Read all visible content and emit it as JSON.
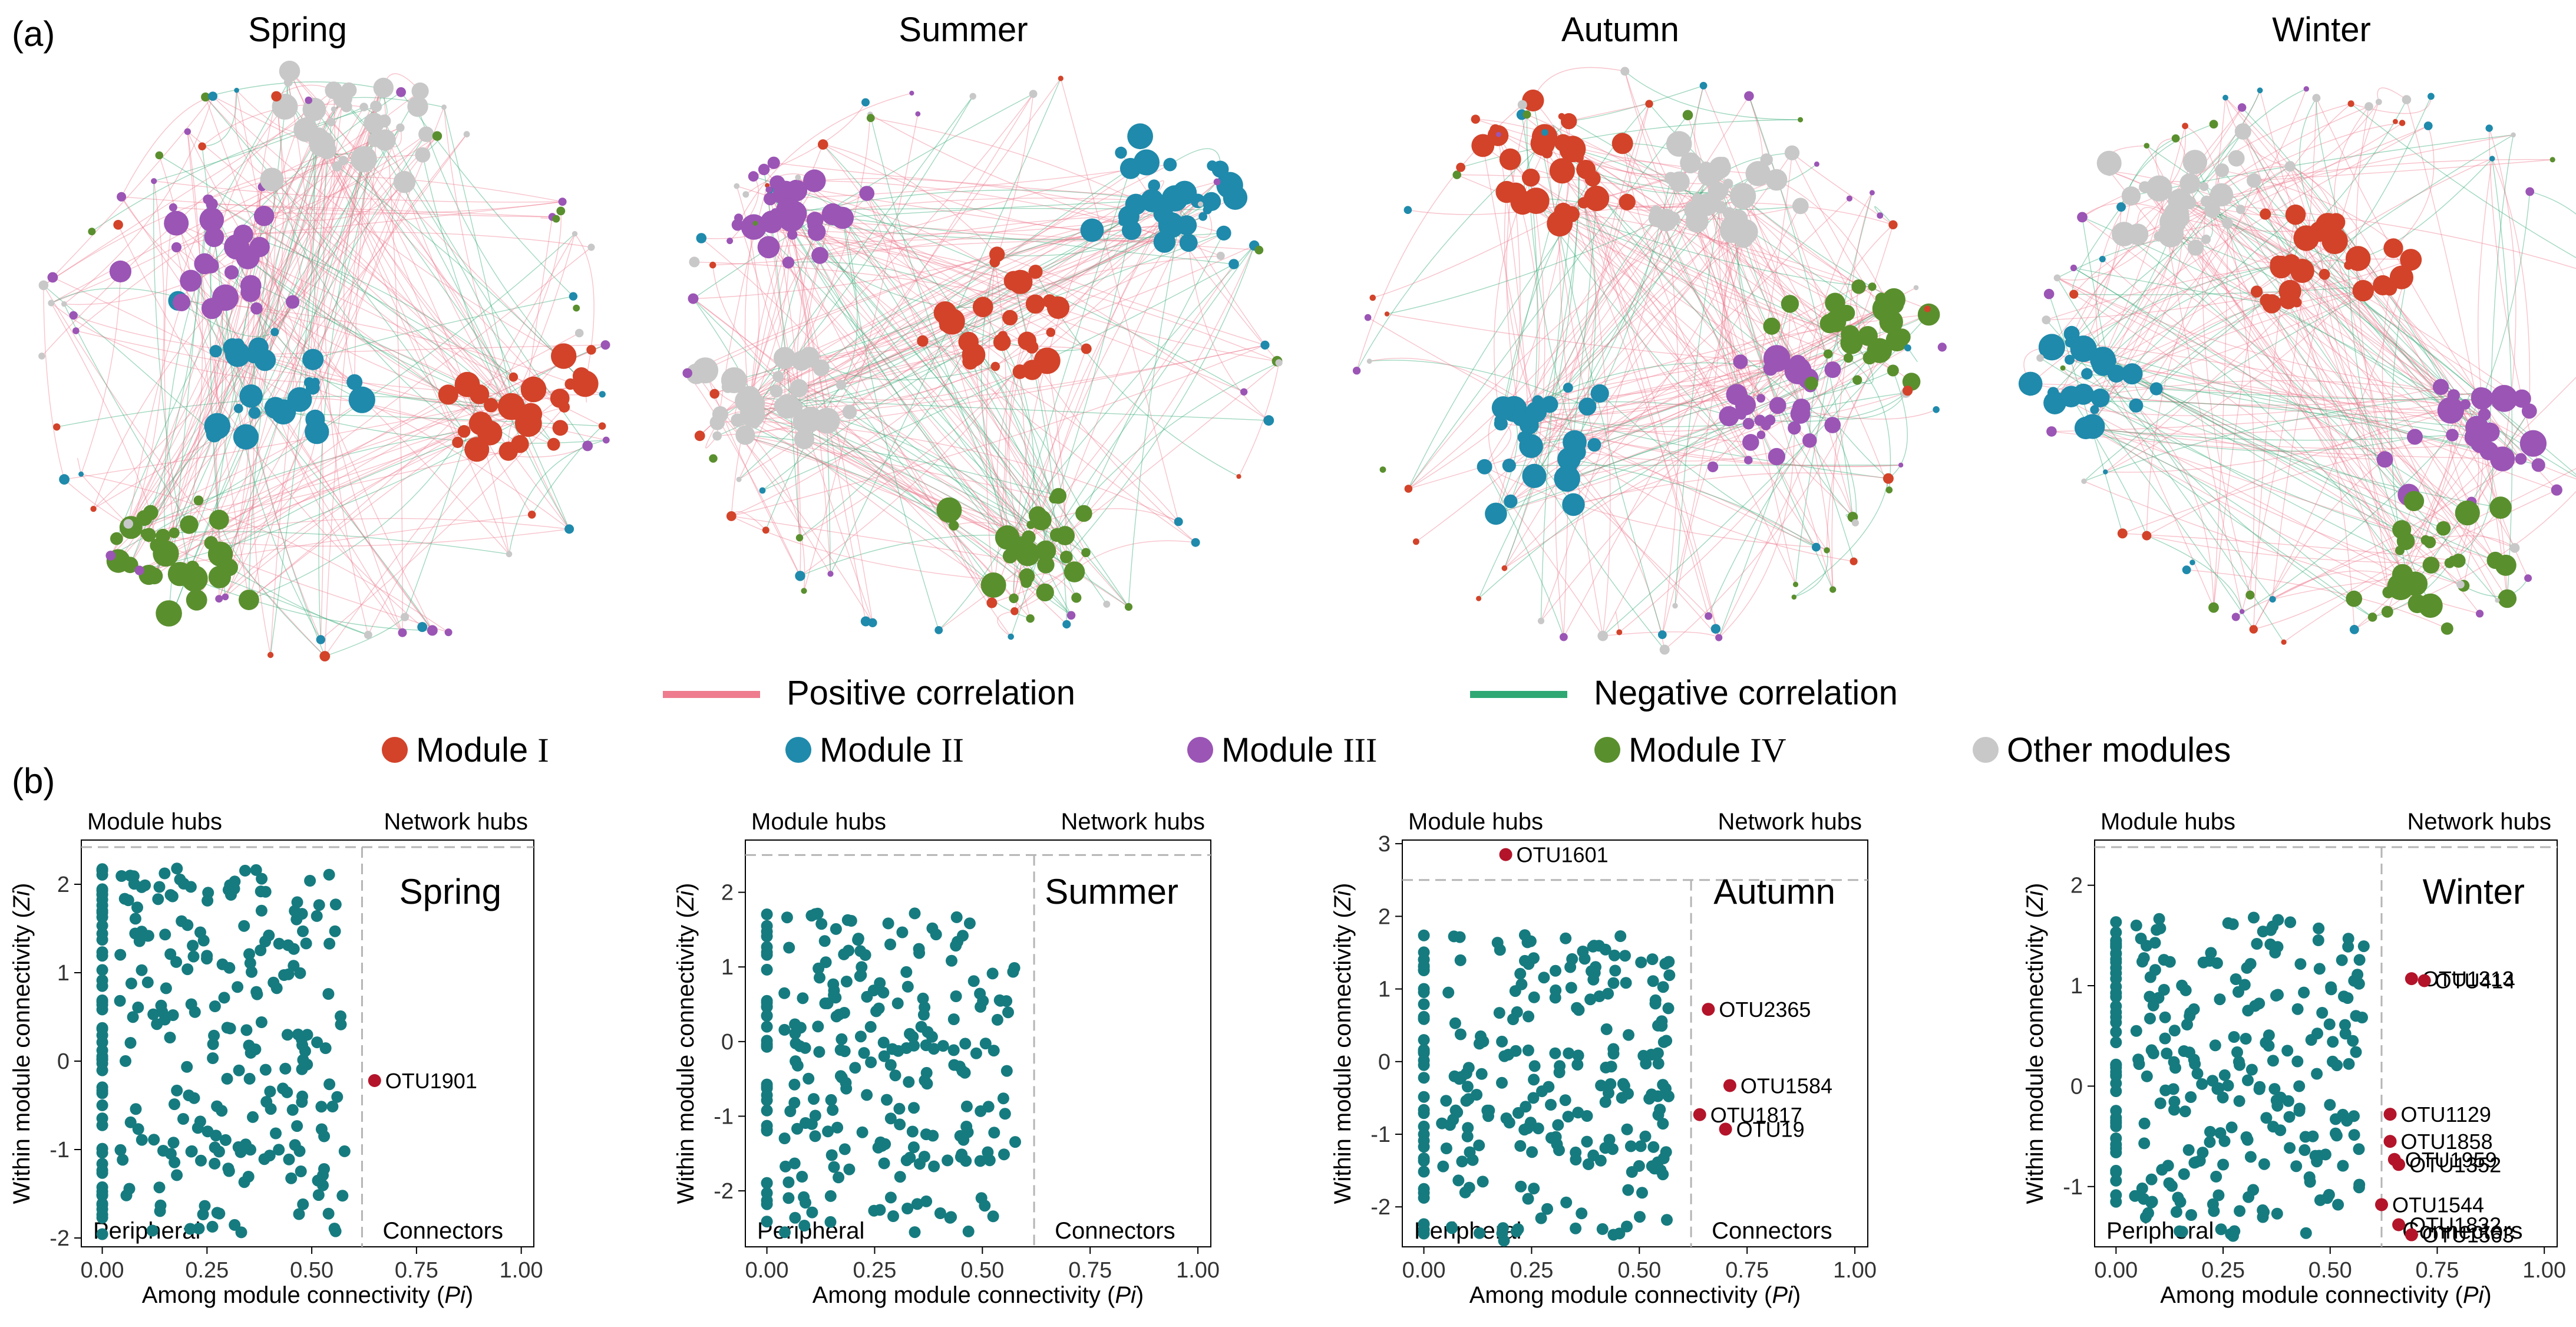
{
  "panel_a_label": "(a)",
  "panel_b_label": "(b)",
  "network_titles": [
    "Spring",
    "Summer",
    "Autumn",
    "Winter"
  ],
  "legend": {
    "positive": "Positive correlation",
    "negative": "Negative correlation",
    "modules": [
      {
        "word": "Module",
        "numeral": "I",
        "color": "#D2432A"
      },
      {
        "word": "Module",
        "numeral": "II",
        "color": "#1F8AAB"
      },
      {
        "word": "Module",
        "numeral": "III",
        "color": "#9B55B5"
      },
      {
        "word": "Module",
        "numeral": "IV",
        "color": "#5A8F2E"
      },
      {
        "word": "Other modules",
        "numeral": "",
        "color": "#C8C8C8"
      }
    ],
    "positive_color": "#EE7B8E",
    "negative_color": "#2FA874"
  },
  "colors": {
    "point": "#167B7F",
    "hub": "#B3142A",
    "dashed": "#B5B5B5"
  },
  "chart_data": [
    {
      "type": "scatter",
      "season": "Spring",
      "xlabel": "Among module connectivity (Pi)",
      "ylabel": "Within module connectivity (Zi)",
      "xlim": [
        -0.05,
        1.03
      ],
      "ylim": [
        -2.1,
        2.5
      ],
      "xticks": [
        "0.00",
        "0.25",
        "0.50",
        "0.75",
        "1.00"
      ],
      "yticks": [
        "-2",
        "-1",
        "0",
        "1",
        "2"
      ],
      "quadrants": [
        "Module hubs",
        "Network hubs",
        "Peripheral",
        "Connectors"
      ],
      "thresholds": {
        "pi": 0.62,
        "zi": 2.5
      },
      "hubs": [
        {
          "label": "OTU1901",
          "pi": 0.65,
          "zi": -0.22
        }
      ]
    },
    {
      "type": "scatter",
      "season": "Summer",
      "xlabel": "Among module connectivity (Pi)",
      "ylabel": "Within module connectivity (Zi)",
      "xlim": [
        -0.05,
        1.03
      ],
      "ylim": [
        -2.75,
        2.7
      ],
      "xticks": [
        "0.00",
        "0.25",
        "0.50",
        "0.75",
        "1.00"
      ],
      "yticks": [
        "-2",
        "-1",
        "0",
        "1",
        "2"
      ],
      "quadrants": [
        "Module hubs",
        "Network hubs",
        "Peripheral",
        "Connectors"
      ],
      "thresholds": {
        "pi": 0.62,
        "zi": 2.5
      },
      "hubs": []
    },
    {
      "type": "scatter",
      "season": "Autumn",
      "xlabel": "Among module connectivity (Pi)",
      "ylabel": "Within module connectivity (Zi)",
      "xlim": [
        -0.05,
        1.03
      ],
      "ylim": [
        -2.55,
        3.05
      ],
      "xticks": [
        "0.00",
        "0.25",
        "0.50",
        "0.75",
        "1.00"
      ],
      "yticks": [
        "-2",
        "-1",
        "0",
        "1",
        "2",
        "3"
      ],
      "quadrants": [
        "Module hubs",
        "Network hubs",
        "Peripheral",
        "Connectors"
      ],
      "thresholds": {
        "pi": 0.62,
        "zi": 2.5
      },
      "hubs": [
        {
          "label": "OTU1601",
          "pi": 0.19,
          "zi": 2.85
        },
        {
          "label": "OTU2365",
          "pi": 0.66,
          "zi": 0.72
        },
        {
          "label": "OTU1584",
          "pi": 0.71,
          "zi": -0.33
        },
        {
          "label": "OTU1817",
          "pi": 0.64,
          "zi": -0.73
        },
        {
          "label": "OTU19",
          "pi": 0.7,
          "zi": -0.93
        }
      ]
    },
    {
      "type": "scatter",
      "season": "Winter",
      "xlabel": "Among module connectivity (Pi)",
      "ylabel": "Within module connectivity (Zi)",
      "xlim": [
        -0.05,
        1.03
      ],
      "ylim": [
        -1.6,
        2.45
      ],
      "xticks": [
        "0.00",
        "0.25",
        "0.50",
        "0.75",
        "1.00"
      ],
      "yticks": [
        "-1",
        "0",
        "1",
        "2"
      ],
      "quadrants": [
        "Module hubs",
        "Network hubs",
        "Peripheral",
        "Connectors"
      ],
      "thresholds": {
        "pi": 0.62,
        "zi": 2.5
      },
      "hubs": [
        {
          "label": "OTU1313",
          "pi": 0.69,
          "zi": 1.07
        },
        {
          "label": "OTU414",
          "pi": 0.72,
          "zi": 1.05
        },
        {
          "label": "OTU1129",
          "pi": 0.64,
          "zi": -0.28
        },
        {
          "label": "OTU1858",
          "pi": 0.64,
          "zi": -0.55
        },
        {
          "label": "OTU1959",
          "pi": 0.65,
          "zi": -0.73
        },
        {
          "label": "OTU1352",
          "pi": 0.66,
          "zi": -0.78
        },
        {
          "label": "OTU1544",
          "pi": 0.62,
          "zi": -1.18
        },
        {
          "label": "OTU1832",
          "pi": 0.66,
          "zi": -1.38
        },
        {
          "label": "OTU1563",
          "pi": 0.69,
          "zi": -1.48
        }
      ]
    }
  ]
}
